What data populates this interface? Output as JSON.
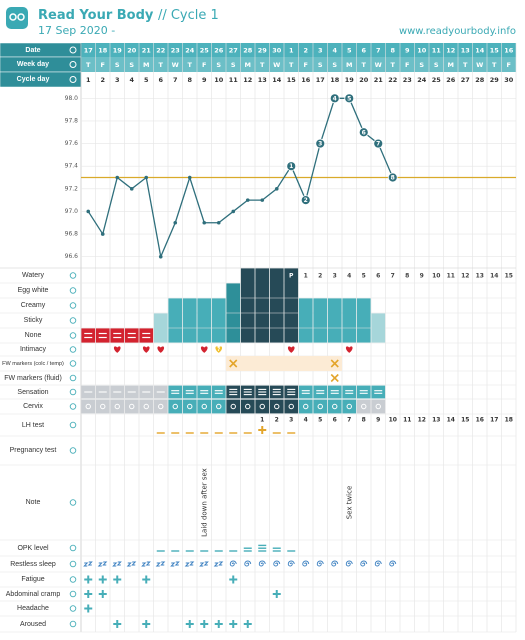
{
  "header": {
    "brand": "Read Your Body",
    "cycle": "// Cycle 1",
    "start": "17 Sep 2020 -",
    "url": "www.readyourbody.info"
  },
  "table_header": {
    "date": "Date",
    "week_day": "Week day",
    "cycle_day": "Cycle day"
  },
  "days": {
    "dates": [
      17,
      18,
      19,
      20,
      21,
      22,
      23,
      24,
      25,
      26,
      27,
      28,
      29,
      30,
      1,
      2,
      3,
      4,
      5,
      6,
      7,
      8,
      9,
      10,
      11,
      12,
      13,
      14,
      15,
      16
    ],
    "weekdays": [
      "T",
      "F",
      "S",
      "S",
      "M",
      "T",
      "W",
      "T",
      "F",
      "S",
      "S",
      "M",
      "T",
      "W",
      "T",
      "F",
      "S",
      "S",
      "M",
      "T",
      "W",
      "T",
      "F",
      "S",
      "S",
      "M",
      "T",
      "W",
      "T",
      "F"
    ],
    "cycle_days": [
      1,
      2,
      3,
      4,
      5,
      6,
      7,
      8,
      9,
      10,
      11,
      12,
      13,
      14,
      15,
      16,
      17,
      18,
      19,
      20,
      21,
      22,
      23,
      24,
      25,
      26,
      27,
      28,
      29,
      30
    ]
  },
  "chart_data": {
    "type": "line",
    "values": [
      97.0,
      96.8,
      97.3,
      97.2,
      97.3,
      96.6,
      96.9,
      97.3,
      96.9,
      96.9,
      97.0,
      97.1,
      97.1,
      97.2,
      97.4,
      97.1,
      97.6,
      98.0,
      98.0,
      97.7,
      97.6,
      97.3,
      null,
      null,
      null,
      null,
      null,
      null,
      null,
      null
    ],
    "color": "#2f6f7c",
    "ylim": [
      96.5,
      98.1
    ],
    "yticks": [
      {
        "value": 98,
        "label": "98.0"
      },
      97.8,
      97.6,
      97.4,
      97.2,
      {
        "value": 97,
        "label": "97.0"
      },
      96.8,
      96.6
    ],
    "grid": true,
    "coverline": 97.3,
    "coverline_color": "#d9aa2a",
    "point_numbers": [
      null,
      null,
      null,
      null,
      null,
      null,
      null,
      null,
      null,
      null,
      null,
      null,
      null,
      null,
      1,
      2,
      3,
      4,
      5,
      6,
      7,
      8,
      null,
      null,
      null,
      null,
      null,
      null,
      null,
      null
    ]
  },
  "peak_labels": [
    null,
    null,
    null,
    null,
    null,
    null,
    null,
    null,
    null,
    null,
    null,
    null,
    null,
    null,
    "P",
    "1",
    "2",
    "3",
    "4",
    "5",
    "6",
    "7",
    "8",
    "9",
    "10",
    "11",
    "12",
    "13",
    "14",
    "15"
  ],
  "lh_counts": [
    null,
    null,
    null,
    null,
    null,
    null,
    null,
    null,
    null,
    null,
    null,
    null,
    "1",
    "2",
    "3",
    "4",
    "5",
    "6",
    "7",
    "8",
    "9",
    "10",
    "11",
    "12",
    "13",
    "14",
    "15",
    "16",
    "17",
    "18"
  ],
  "rows": [
    {
      "label": "Watery",
      "bar_color": "#264a57",
      "days": [
        12,
        13,
        14,
        15
      ]
    },
    {
      "label": "Egg white",
      "bar_color": "#2e8f99",
      "days": [
        11
      ]
    },
    {
      "label": "Creamy",
      "bar_color": "#47aeb8",
      "days": [
        7,
        8,
        9,
        10,
        16,
        17,
        18,
        19,
        20
      ]
    },
    {
      "label": "Sticky",
      "bar_color": "#a6d6da",
      "days": [
        6,
        21
      ]
    },
    {
      "label": "None",
      "bar_color": "#d3232f",
      "days": [
        1,
        2,
        3,
        4,
        5
      ]
    },
    {
      "label": "Intimacy",
      "marks": [
        {
          "kind": "heart",
          "color": "#d3232f",
          "days": [
            3,
            5,
            6,
            9,
            15,
            19
          ]
        },
        {
          "kind": "heart",
          "color": "#f0c030",
          "label": "?",
          "days": [
            10
          ]
        }
      ]
    },
    {
      "label": "FW markers (colc / temp)",
      "marks": [
        {
          "kind": "band",
          "color": "#fcebd5",
          "days": [
            11,
            12,
            13,
            14,
            15,
            16,
            17,
            18
          ]
        },
        {
          "kind": "cross",
          "color": "#e3a52b",
          "days": [
            11,
            18
          ]
        }
      ]
    },
    {
      "label": "FW markers (fluid)",
      "marks": [
        {
          "kind": "cross",
          "color": "#e3a52b",
          "days": [
            18
          ]
        }
      ]
    },
    {
      "label": "Sensation",
      "marks": [
        {
          "kind": "block",
          "color": "#c9cdd2",
          "lines": 1,
          "days": [
            1,
            2,
            3,
            4,
            5,
            6
          ]
        },
        {
          "kind": "block",
          "color": "#47aeb8",
          "lines": 2,
          "days": [
            7,
            8,
            9,
            10,
            16,
            17,
            18,
            19,
            20,
            21
          ]
        },
        {
          "kind": "block",
          "color": "#264a57",
          "lines": 3,
          "days": [
            11,
            12,
            13,
            14,
            15
          ]
        }
      ]
    },
    {
      "label": "Cervix",
      "marks": [
        {
          "kind": "cervix",
          "color": "#c9cdd2",
          "days": [
            1,
            2,
            3,
            4,
            5,
            6,
            20,
            21
          ]
        },
        {
          "kind": "cervix",
          "color": "#47aeb8",
          "days": [
            7,
            8,
            9,
            10,
            16,
            17,
            18,
            19
          ]
        },
        {
          "kind": "cervix",
          "color": "#264a57",
          "days": [
            11,
            12,
            13,
            14,
            15
          ]
        }
      ]
    },
    {
      "label": "LH test",
      "marks": [
        {
          "kind": "dash",
          "color": "#e3a52b",
          "count": 1,
          "days": [
            6,
            7,
            8,
            9,
            10,
            11,
            12,
            14,
            15
          ]
        },
        {
          "kind": "plus",
          "color": "#e3a52b",
          "days": [
            13
          ]
        }
      ]
    },
    {
      "label": "Pregnancy test",
      "marks": []
    },
    {
      "label": "Note",
      "notes": [
        {
          "day": 9,
          "text": "Laid down after sex"
        },
        {
          "day": 19,
          "text": "Sex twice"
        }
      ]
    },
    {
      "label": "OPK level",
      "marks": [
        {
          "kind": "dash",
          "color": "#47aeb8",
          "count": 1,
          "days": [
            6,
            7,
            8,
            9,
            10,
            11,
            15
          ]
        },
        {
          "kind": "dash",
          "color": "#47aeb8",
          "count": 2,
          "days": [
            12,
            14
          ]
        },
        {
          "kind": "dash",
          "color": "#47aeb8",
          "count": 3,
          "days": [
            13
          ]
        }
      ]
    },
    {
      "label": "Restless sleep",
      "marks": [
        {
          "kind": "zz",
          "color": "#3a7fc0",
          "days": [
            1,
            2,
            3,
            4,
            5,
            6,
            7,
            8,
            9,
            10
          ]
        },
        {
          "kind": "swirl",
          "color": "#3a7fc0",
          "days": [
            11,
            12,
            13,
            14,
            15,
            16,
            17,
            18,
            19,
            20,
            21,
            22
          ]
        }
      ]
    },
    {
      "label": "Fatigue",
      "marks": [
        {
          "kind": "plus",
          "color": "#47aeb8",
          "days": [
            1,
            2,
            3,
            5,
            11
          ]
        }
      ]
    },
    {
      "label": "Abdominal cramp",
      "marks": [
        {
          "kind": "plus",
          "color": "#47aeb8",
          "days": [
            1,
            2,
            14
          ]
        }
      ]
    },
    {
      "label": "Headache",
      "marks": [
        {
          "kind": "plus",
          "color": "#47aeb8",
          "days": [
            1
          ]
        }
      ]
    },
    {
      "label": "Aroused",
      "marks": [
        {
          "kind": "plus",
          "color": "#47aeb8",
          "days": [
            3,
            5,
            8,
            9,
            10,
            11,
            12
          ]
        }
      ]
    }
  ]
}
